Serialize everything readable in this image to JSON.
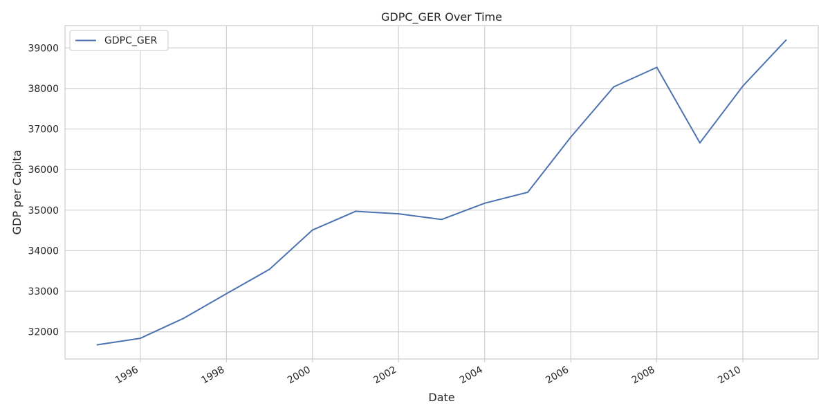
{
  "chart_data": {
    "type": "line",
    "title": "GDPC_GER Over Time",
    "xlabel": "Date",
    "ylabel": "GDP per Capita",
    "x": [
      1995,
      1996,
      1997,
      1998,
      1999,
      2000,
      2001,
      2002,
      2003,
      2004,
      2005,
      2006,
      2007,
      2008,
      2009,
      2010,
      2011
    ],
    "series": [
      {
        "name": "GDPC_GER",
        "color": "#4c72b0",
        "values": [
          31680,
          31840,
          32330,
          32940,
          33540,
          34510,
          34970,
          34910,
          34770,
          35170,
          35440,
          36800,
          38040,
          38520,
          36660,
          38060,
          39190
        ]
      }
    ],
    "xlim": [
      1994.25,
      2011.75
    ],
    "ylim": [
      31330,
      39550
    ],
    "x_ticks": [
      1996,
      1998,
      2000,
      2002,
      2004,
      2006,
      2008,
      2010
    ],
    "x_tick_labels": [
      "1996",
      "1998",
      "2000",
      "2002",
      "2004",
      "2006",
      "2008",
      "2010"
    ],
    "y_ticks": [
      32000,
      33000,
      34000,
      35000,
      36000,
      37000,
      38000,
      39000
    ],
    "y_tick_labels": [
      "32000",
      "33000",
      "34000",
      "35000",
      "36000",
      "37000",
      "38000",
      "39000"
    ],
    "grid": true,
    "legend_position": "top-left"
  }
}
